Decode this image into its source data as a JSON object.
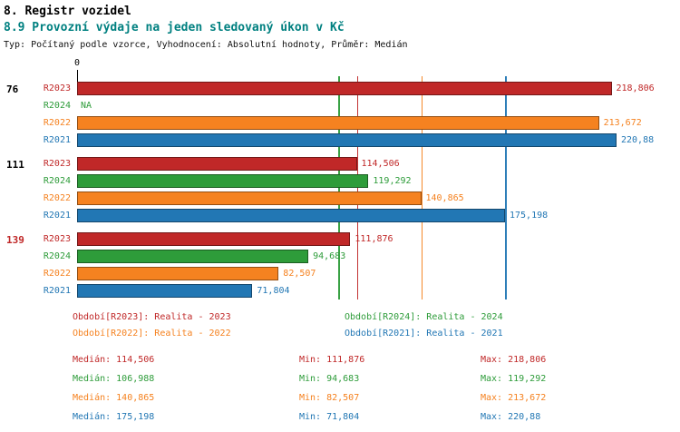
{
  "colors": {
    "title": "#000000",
    "subtitle": "#008080",
    "meta": "#111111",
    "series": {
      "R2023": "#c02828",
      "R2024": "#2e9c3a",
      "R2022": "#f58220",
      "R2021": "#2277b4"
    }
  },
  "header": {
    "title": "8. Registr vozidel",
    "subtitle": "8.9 Provozní výdaje na jeden sledovaný úkon v Kč",
    "meta": "Typ: Počítaný podle vzorce, Vyhodnocení: Absolutní hodnoty, Průměr: Medián"
  },
  "chart_data": {
    "type": "bar",
    "orientation": "horizontal",
    "title": "8.9 Provozní výdaje na jeden sledovaný úkon v Kč",
    "x_origin_label": "0",
    "xlim": [
      0,
      232000
    ],
    "grid": false,
    "series_order": [
      "R2023",
      "R2024",
      "R2022",
      "R2021"
    ],
    "groups": [
      {
        "label": "76",
        "label_color": "#000000",
        "bars": [
          {
            "series": "R2023",
            "value": 218806,
            "display": "218,806"
          },
          {
            "series": "R2024",
            "value": null,
            "display": "NA"
          },
          {
            "series": "R2022",
            "value": 213672,
            "display": "213,672"
          },
          {
            "series": "R2021",
            "value": 220880,
            "display": "220,88"
          }
        ]
      },
      {
        "label": "111",
        "label_color": "#000000",
        "bars": [
          {
            "series": "R2023",
            "value": 114506,
            "display": "114,506"
          },
          {
            "series": "R2024",
            "value": 119292,
            "display": "119,292"
          },
          {
            "series": "R2022",
            "value": 140865,
            "display": "140,865"
          },
          {
            "series": "R2021",
            "value": 175198,
            "display": "175,198"
          }
        ]
      },
      {
        "label": "139",
        "label_color": "#c02828",
        "bars": [
          {
            "series": "R2023",
            "value": 111876,
            "display": "111,876"
          },
          {
            "series": "R2024",
            "value": 94683,
            "display": "94,683"
          },
          {
            "series": "R2022",
            "value": 82507,
            "display": "82,507"
          },
          {
            "series": "R2021",
            "value": 71804,
            "display": "71,804"
          }
        ]
      }
    ],
    "median_lines": [
      {
        "series": "R2024",
        "value": 106988
      },
      {
        "series": "R2023",
        "value": 114506
      },
      {
        "series": "R2022",
        "value": 140865
      },
      {
        "series": "R2021",
        "value": 175198
      }
    ]
  },
  "legend": {
    "items": [
      {
        "series": "R2023",
        "label": "Období[R2023]: Realita - 2023",
        "col": 0,
        "row": 0
      },
      {
        "series": "R2024",
        "label": "Období[R2024]: Realita - 2024",
        "col": 1,
        "row": 0
      },
      {
        "series": "R2022",
        "label": "Období[R2022]: Realita - 2022",
        "col": 0,
        "row": 1
      },
      {
        "series": "R2021",
        "label": "Období[R2021]: Realita - 2021",
        "col": 1,
        "row": 1
      }
    ]
  },
  "stats": {
    "rows": [
      {
        "series": "R2023",
        "median": "Medián: 114,506",
        "min": "Min: 111,876",
        "max": "Max: 218,806"
      },
      {
        "series": "R2024",
        "median": "Medián: 106,988",
        "min": "Min: 94,683",
        "max": "Max: 119,292"
      },
      {
        "series": "R2022",
        "median": "Medián: 140,865",
        "min": "Min: 82,507",
        "max": "Max: 213,672"
      },
      {
        "series": "R2021",
        "median": "Medián: 175,198",
        "min": "Min: 71,804",
        "max": "Max: 220,88"
      }
    ]
  }
}
